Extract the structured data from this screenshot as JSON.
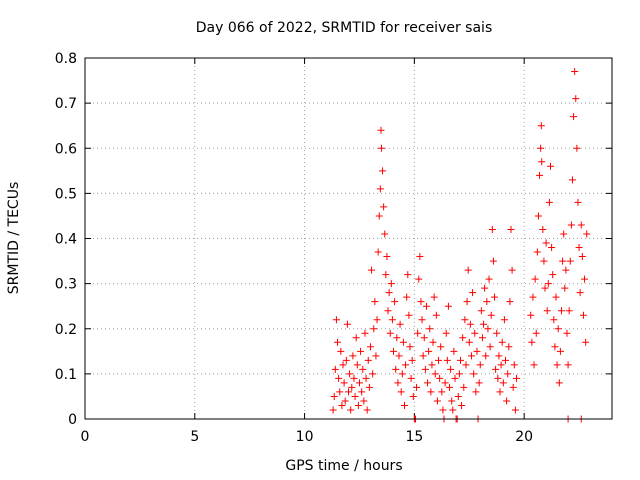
{
  "chart_data": {
    "type": "scatter",
    "title": "Day 066 of 2022, SRMTID for receiver sais",
    "xlabel": "GPS time / hours",
    "ylabel": "SRMTID / TECUs",
    "xlim": [
      0,
      24
    ],
    "ylim": [
      0,
      0.8
    ],
    "x_ticks": [
      0,
      5,
      10,
      15,
      20
    ],
    "x_tick_labels": [
      "0",
      "5",
      "10",
      "15",
      "20"
    ],
    "y_ticks": [
      0,
      0.1,
      0.2,
      0.3,
      0.4,
      0.5,
      0.6,
      0.7,
      0.8
    ],
    "y_tick_labels": [
      "0",
      "0.1",
      "0.2",
      "0.3",
      "0.4",
      "0.5",
      "0.6",
      "0.7",
      "0.8"
    ],
    "grid": true,
    "marker": "+",
    "color": "#ff0000",
    "series": [
      {
        "name": "SRMTID",
        "points": [
          [
            11.3,
            0.02
          ],
          [
            11.35,
            0.05
          ],
          [
            11.4,
            0.11
          ],
          [
            11.45,
            0.22
          ],
          [
            11.5,
            0.17
          ],
          [
            11.55,
            0.09
          ],
          [
            11.6,
            0.06
          ],
          [
            11.65,
            0.15
          ],
          [
            11.7,
            0.03
          ],
          [
            11.75,
            0.12
          ],
          [
            11.8,
            0.08
          ],
          [
            11.85,
            0.04
          ],
          [
            11.9,
            0.13
          ],
          [
            11.95,
            0.21
          ],
          [
            12.0,
            0.06
          ],
          [
            12.05,
            0.1
          ],
          [
            12.1,
            0.02
          ],
          [
            12.15,
            0.07
          ],
          [
            12.2,
            0.14
          ],
          [
            12.25,
            0.09
          ],
          [
            12.3,
            0.05
          ],
          [
            12.35,
            0.18
          ],
          [
            12.4,
            0.12
          ],
          [
            12.45,
            0.03
          ],
          [
            12.5,
            0.08
          ],
          [
            12.55,
            0.15
          ],
          [
            12.6,
            0.06
          ],
          [
            12.65,
            0.11
          ],
          [
            12.7,
            0.04
          ],
          [
            12.75,
            0.19
          ],
          [
            12.8,
            0.09
          ],
          [
            12.85,
            0.02
          ],
          [
            12.9,
            0.13
          ],
          [
            12.95,
            0.07
          ],
          [
            13.0,
            0.16
          ],
          [
            13.05,
            0.33
          ],
          [
            13.1,
            0.1
          ],
          [
            13.15,
            0.2
          ],
          [
            13.2,
            0.26
          ],
          [
            13.25,
            0.14
          ],
          [
            13.3,
            0.22
          ],
          [
            13.35,
            0.37
          ],
          [
            13.4,
            0.45
          ],
          [
            13.45,
            0.51
          ],
          [
            13.48,
            0.64
          ],
          [
            13.5,
            0.6
          ],
          [
            13.55,
            0.55
          ],
          [
            13.6,
            0.47
          ],
          [
            13.65,
            0.41
          ],
          [
            13.7,
            0.32
          ],
          [
            13.75,
            0.36
          ],
          [
            13.8,
            0.24
          ],
          [
            13.85,
            0.28
          ],
          [
            13.9,
            0.19
          ],
          [
            13.95,
            0.3
          ],
          [
            14.0,
            0.22
          ],
          [
            14.05,
            0.15
          ],
          [
            14.1,
            0.26
          ],
          [
            14.15,
            0.11
          ],
          [
            14.2,
            0.18
          ],
          [
            14.25,
            0.08
          ],
          [
            14.3,
            0.14
          ],
          [
            14.35,
            0.21
          ],
          [
            14.4,
            0.06
          ],
          [
            14.45,
            0.1
          ],
          [
            14.5,
            0.17
          ],
          [
            14.55,
            0.03
          ],
          [
            14.6,
            0.12
          ],
          [
            14.65,
            0.27
          ],
          [
            14.7,
            0.32
          ],
          [
            14.75,
            0.23
          ],
          [
            14.8,
            0.16
          ],
          [
            14.85,
            0.09
          ],
          [
            14.9,
            0.13
          ],
          [
            14.95,
            0.05
          ],
          [
            15.0,
            0.0
          ],
          [
            15.05,
            0.0
          ],
          [
            15.1,
            0.07
          ],
          [
            15.15,
            0.19
          ],
          [
            15.2,
            0.31
          ],
          [
            15.25,
            0.36
          ],
          [
            15.3,
            0.26
          ],
          [
            15.35,
            0.22
          ],
          [
            15.4,
            0.14
          ],
          [
            15.45,
            0.18
          ],
          [
            15.5,
            0.11
          ],
          [
            15.55,
            0.25
          ],
          [
            15.6,
            0.08
          ],
          [
            15.65,
            0.15
          ],
          [
            15.7,
            0.2
          ],
          [
            15.75,
            0.06
          ],
          [
            15.8,
            0.12
          ],
          [
            15.85,
            0.17
          ],
          [
            15.9,
            0.27
          ],
          [
            15.95,
            0.1
          ],
          [
            16.0,
            0.23
          ],
          [
            16.05,
            0.04
          ],
          [
            16.1,
            0.13
          ],
          [
            16.15,
            0.09
          ],
          [
            16.2,
            0.16
          ],
          [
            16.25,
            0.06
          ],
          [
            16.3,
            0.02
          ],
          [
            16.35,
            0.0
          ],
          [
            16.4,
            0.08
          ],
          [
            16.45,
            0.19
          ],
          [
            16.5,
            0.13
          ],
          [
            16.55,
            0.25
          ],
          [
            16.6,
            0.07
          ],
          [
            16.65,
            0.11
          ],
          [
            16.7,
            0.04
          ],
          [
            16.75,
            0.02
          ],
          [
            16.8,
            0.15
          ],
          [
            16.85,
            0.09
          ],
          [
            16.9,
            0.0
          ],
          [
            16.95,
            0.0
          ],
          [
            17.0,
            0.05
          ],
          [
            17.05,
            0.1
          ],
          [
            17.1,
            0.13
          ],
          [
            17.15,
            0.03
          ],
          [
            17.2,
            0.18
          ],
          [
            17.25,
            0.07
          ],
          [
            17.3,
            0.22
          ],
          [
            17.35,
            0.12
          ],
          [
            17.4,
            0.26
          ],
          [
            17.45,
            0.33
          ],
          [
            17.5,
            0.17
          ],
          [
            17.55,
            0.21
          ],
          [
            17.6,
            0.14
          ],
          [
            17.65,
            0.28
          ],
          [
            17.7,
            0.1
          ],
          [
            17.75,
            0.19
          ],
          [
            17.8,
            0.06
          ],
          [
            17.85,
            0.15
          ],
          [
            17.9,
            0.0
          ],
          [
            17.95,
            0.08
          ],
          [
            18.0,
            0.12
          ],
          [
            18.05,
            0.24
          ],
          [
            18.1,
            0.18
          ],
          [
            18.15,
            0.21
          ],
          [
            18.2,
            0.29
          ],
          [
            18.25,
            0.14
          ],
          [
            18.3,
            0.26
          ],
          [
            18.35,
            0.2
          ],
          [
            18.4,
            0.31
          ],
          [
            18.45,
            0.16
          ],
          [
            18.5,
            0.23
          ],
          [
            18.55,
            0.42
          ],
          [
            18.6,
            0.35
          ],
          [
            18.65,
            0.27
          ],
          [
            18.7,
            0.11
          ],
          [
            18.75,
            0.19
          ],
          [
            18.8,
            0.09
          ],
          [
            18.85,
            0.14
          ],
          [
            18.9,
            0.06
          ],
          [
            18.95,
            0.12
          ],
          [
            19.0,
            0.17
          ],
          [
            19.05,
            0.08
          ],
          [
            19.1,
            0.22
          ],
          [
            19.15,
            0.13
          ],
          [
            19.2,
            0.04
          ],
          [
            19.25,
            0.1
          ],
          [
            19.3,
            0.16
          ],
          [
            19.35,
            0.26
          ],
          [
            19.4,
            0.42
          ],
          [
            19.45,
            0.33
          ],
          [
            19.5,
            0.07
          ],
          [
            19.55,
            0.12
          ],
          [
            19.6,
            0.02
          ],
          [
            19.65,
            0.09
          ],
          [
            20.3,
            0.23
          ],
          [
            20.35,
            0.17
          ],
          [
            20.4,
            0.27
          ],
          [
            20.45,
            0.12
          ],
          [
            20.5,
            0.31
          ],
          [
            20.55,
            0.19
          ],
          [
            20.6,
            0.37
          ],
          [
            20.65,
            0.45
          ],
          [
            20.7,
            0.54
          ],
          [
            20.75,
            0.6
          ],
          [
            20.78,
            0.65
          ],
          [
            20.8,
            0.57
          ],
          [
            20.85,
            0.42
          ],
          [
            20.9,
            0.35
          ],
          [
            20.95,
            0.29
          ],
          [
            21.0,
            0.39
          ],
          [
            21.05,
            0.24
          ],
          [
            21.1,
            0.3
          ],
          [
            21.15,
            0.48
          ],
          [
            21.2,
            0.56
          ],
          [
            21.25,
            0.38
          ],
          [
            21.3,
            0.32
          ],
          [
            21.35,
            0.22
          ],
          [
            21.4,
            0.16
          ],
          [
            21.45,
            0.27
          ],
          [
            21.5,
            0.12
          ],
          [
            21.55,
            0.2
          ],
          [
            21.6,
            0.08
          ],
          [
            21.65,
            0.15
          ],
          [
            21.7,
            0.24
          ],
          [
            21.75,
            0.35
          ],
          [
            21.8,
            0.41
          ],
          [
            21.85,
            0.29
          ],
          [
            21.9,
            0.33
          ],
          [
            21.95,
            0.19
          ],
          [
            22.0,
            0.12
          ],
          [
            22.05,
            0.24
          ],
          [
            22.1,
            0.35
          ],
          [
            22.15,
            0.43
          ],
          [
            22.2,
            0.53
          ],
          [
            22.25,
            0.67
          ],
          [
            22.3,
            0.77
          ],
          [
            22.35,
            0.71
          ],
          [
            22.4,
            0.6
          ],
          [
            22.45,
            0.48
          ],
          [
            22.5,
            0.38
          ],
          [
            22.55,
            0.28
          ],
          [
            22.6,
            0.43
          ],
          [
            22.65,
            0.36
          ],
          [
            22.7,
            0.23
          ],
          [
            22.75,
            0.31
          ],
          [
            22.8,
            0.17
          ],
          [
            22.85,
            0.41
          ],
          [
            22.0,
            0.0
          ],
          [
            22.6,
            0.0
          ]
        ]
      }
    ]
  }
}
